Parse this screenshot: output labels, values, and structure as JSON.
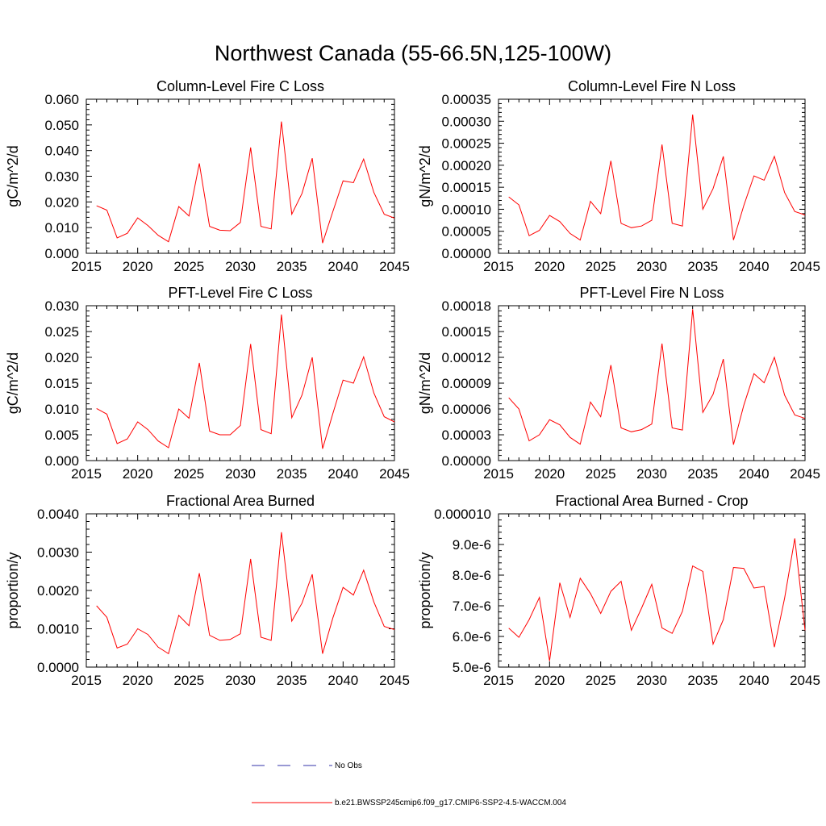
{
  "title": "Northwest Canada (55-66.5N,125-100W)",
  "legend": [
    {
      "label": "No Obs",
      "color": "#3333aa",
      "style": "dashed"
    },
    {
      "label": "b.e21.BWSSP245cmip6.f09_g17.CMIP6-SSP2-4.5-WACCM.004",
      "color": "#ff0000",
      "style": "solid"
    }
  ],
  "chart_data": [
    {
      "type": "line",
      "title": "Column-Level Fire C Loss",
      "ylabel": "gC/m^2/d",
      "xlim": [
        2015,
        2045
      ],
      "ylim": [
        0,
        0.06
      ],
      "xticks": [
        "2015",
        "2020",
        "2025",
        "2030",
        "2035",
        "2040",
        "2045"
      ],
      "yticks": [
        "0.000",
        "0.010",
        "0.020",
        "0.030",
        "0.040",
        "0.050",
        "0.060"
      ],
      "x": [
        2016,
        2017,
        2018,
        2019,
        2020,
        2021,
        2022,
        2023,
        2024,
        2025,
        2026,
        2027,
        2028,
        2029,
        2030,
        2031,
        2032,
        2033,
        2034,
        2035,
        2036,
        2037,
        2038,
        2039,
        2040,
        2041,
        2042,
        2043,
        2044,
        2045
      ],
      "series": [
        {
          "values": [
            0.0185,
            0.0168,
            0.006,
            0.0078,
            0.0138,
            0.0108,
            0.007,
            0.0045,
            0.0182,
            0.0145,
            0.035,
            0.0105,
            0.009,
            0.0088,
            0.012,
            0.0412,
            0.0105,
            0.0095,
            0.0513,
            0.0152,
            0.0233,
            0.037,
            0.004,
            0.0162,
            0.0282,
            0.0275,
            0.0367,
            0.0237,
            0.0152,
            0.0137
          ]
        }
      ]
    },
    {
      "type": "line",
      "title": "Column-Level Fire N Loss",
      "ylabel": "gN/m^2/d",
      "xlim": [
        2015,
        2045
      ],
      "ylim": [
        0,
        0.00035
      ],
      "xticks": [
        "2015",
        "2020",
        "2025",
        "2030",
        "2035",
        "2040",
        "2045"
      ],
      "yticks": [
        "0.00000",
        "0.00005",
        "0.00010",
        "0.00015",
        "0.00020",
        "0.00025",
        "0.00030",
        "0.00035"
      ],
      "x": [
        2016,
        2017,
        2018,
        2019,
        2020,
        2021,
        2022,
        2023,
        2024,
        2025,
        2026,
        2027,
        2028,
        2029,
        2030,
        2031,
        2032,
        2033,
        2034,
        2035,
        2036,
        2037,
        2038,
        2039,
        2040,
        2041,
        2042,
        2043,
        2044,
        2045
      ],
      "series": [
        {
          "values": [
            0.000128,
            0.00011,
            4e-05,
            5.2e-05,
            8.6e-05,
            7.2e-05,
            4.5e-05,
            3e-05,
            0.000118,
            9e-05,
            0.00021,
            6.8e-05,
            5.8e-05,
            6.2e-05,
            7.5e-05,
            0.000247,
            6.8e-05,
            6.2e-05,
            0.000315,
            0.0001,
            0.000147,
            0.00022,
            3e-05,
            0.000108,
            0.000176,
            0.000166,
            0.00022,
            0.000138,
            9.5e-05,
            8.7e-05
          ]
        }
      ]
    },
    {
      "type": "line",
      "title": "PFT-Level Fire C Loss",
      "ylabel": "gC/m^2/d",
      "xlim": [
        2015,
        2045
      ],
      "ylim": [
        0,
        0.03
      ],
      "xticks": [
        "2015",
        "2020",
        "2025",
        "2030",
        "2035",
        "2040",
        "2045"
      ],
      "yticks": [
        "0.000",
        "0.005",
        "0.010",
        "0.015",
        "0.020",
        "0.025",
        "0.030"
      ],
      "x": [
        2016,
        2017,
        2018,
        2019,
        2020,
        2021,
        2022,
        2023,
        2024,
        2025,
        2026,
        2027,
        2028,
        2029,
        2030,
        2031,
        2032,
        2033,
        2034,
        2035,
        2036,
        2037,
        2038,
        2039,
        2040,
        2041,
        2042,
        2043,
        2044,
        2045
      ],
      "series": [
        {
          "values": [
            0.0101,
            0.009,
            0.0033,
            0.0042,
            0.0075,
            0.006,
            0.0038,
            0.0025,
            0.01,
            0.0082,
            0.0189,
            0.0057,
            0.005,
            0.005,
            0.0068,
            0.0226,
            0.006,
            0.0052,
            0.0283,
            0.0083,
            0.0127,
            0.02,
            0.0023,
            0.0091,
            0.0156,
            0.015,
            0.0201,
            0.0131,
            0.0085,
            0.0075
          ]
        }
      ]
    },
    {
      "type": "line",
      "title": "PFT-Level Fire N Loss",
      "ylabel": "gN/m^2/d",
      "xlim": [
        2015,
        2045
      ],
      "ylim": [
        0,
        0.00018
      ],
      "xticks": [
        "2015",
        "2020",
        "2025",
        "2030",
        "2035",
        "2040",
        "2045"
      ],
      "yticks": [
        "0.00000",
        "0.00003",
        "0.00006",
        "0.00009",
        "0.00012",
        "0.00015",
        "0.00018"
      ],
      "x": [
        2016,
        2017,
        2018,
        2019,
        2020,
        2021,
        2022,
        2023,
        2024,
        2025,
        2026,
        2027,
        2028,
        2029,
        2030,
        2031,
        2032,
        2033,
        2034,
        2035,
        2036,
        2037,
        2038,
        2039,
        2040,
        2041,
        2042,
        2043,
        2044,
        2045
      ],
      "series": [
        {
          "values": [
            7.3e-05,
            6e-05,
            2.3e-05,
            3e-05,
            4.75e-05,
            4.15e-05,
            2.7e-05,
            1.9e-05,
            6.8e-05,
            5.1e-05,
            0.000111,
            3.8e-05,
            3.35e-05,
            3.6e-05,
            4.25e-05,
            0.000136,
            3.8e-05,
            3.55e-05,
            0.000176,
            5.6e-05,
            7.7e-05,
            0.000118,
            1.85e-05,
            6.4e-05,
            0.000101,
            9.05e-05,
            0.00012,
            7.6e-05,
            5.3e-05,
            4.9e-05
          ]
        }
      ]
    },
    {
      "type": "line",
      "title": "Fractional Area Burned",
      "ylabel": "proportion/y",
      "xlim": [
        2015,
        2045
      ],
      "ylim": [
        0,
        0.004
      ],
      "xticks": [
        "2015",
        "2020",
        "2025",
        "2030",
        "2035",
        "2040",
        "2045"
      ],
      "yticks": [
        "0.0000",
        "0.0010",
        "0.0020",
        "0.0030",
        "0.0040"
      ],
      "x": [
        2016,
        2017,
        2018,
        2019,
        2020,
        2021,
        2022,
        2023,
        2024,
        2025,
        2026,
        2027,
        2028,
        2029,
        2030,
        2031,
        2032,
        2033,
        2034,
        2035,
        2036,
        2037,
        2038,
        2039,
        2040,
        2041,
        2042,
        2043,
        2044,
        2045
      ],
      "series": [
        {
          "values": [
            0.0016,
            0.0013,
            0.0005,
            0.0006,
            0.001,
            0.00085,
            0.00052,
            0.00035,
            0.00135,
            0.00108,
            0.00245,
            0.00083,
            0.0007,
            0.00072,
            0.00087,
            0.00282,
            0.00078,
            0.0007,
            0.00352,
            0.0012,
            0.00167,
            0.00242,
            0.00035,
            0.00128,
            0.00208,
            0.00188,
            0.00253,
            0.0017,
            0.00106,
            0.00098
          ]
        }
      ]
    },
    {
      "type": "line",
      "title": "Fractional Area Burned - Crop",
      "ylabel": "proportion/y",
      "xlim": [
        2015,
        2045
      ],
      "ylim": [
        5e-06,
        1e-05
      ],
      "xticks": [
        "2015",
        "2020",
        "2025",
        "2030",
        "2035",
        "2040",
        "2045"
      ],
      "yticks": [
        "5.0e-6",
        "6.0e-6",
        "7.0e-6",
        "8.0e-6",
        "9.0e-6",
        "0.000010"
      ],
      "x": [
        2016,
        2017,
        2018,
        2019,
        2020,
        2021,
        2022,
        2023,
        2024,
        2025,
        2026,
        2027,
        2028,
        2029,
        2030,
        2031,
        2032,
        2033,
        2034,
        2035,
        2036,
        2037,
        2038,
        2039,
        2040,
        2041,
        2042,
        2043,
        2044,
        2045
      ],
      "series": [
        {
          "values": [
            6.27e-06,
            5.97e-06,
            6.55e-06,
            7.27e-06,
            5.2e-06,
            7.75e-06,
            6.62e-06,
            7.9e-06,
            7.4e-06,
            6.75e-06,
            7.47e-06,
            7.8e-06,
            6.2e-06,
            6.92e-06,
            7.7e-06,
            6.28e-06,
            6.1e-06,
            6.82e-06,
            8.3e-06,
            8.12e-06,
            5.75e-06,
            6.55e-06,
            8.25e-06,
            8.22e-06,
            7.58e-06,
            7.63e-06,
            5.65e-06,
            7.25e-06,
            9.2e-06,
            6.2e-06
          ]
        }
      ]
    }
  ]
}
